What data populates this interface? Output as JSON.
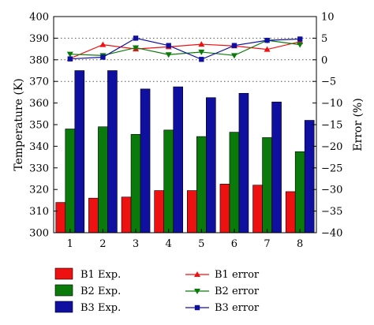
{
  "chart_data": {
    "type": "bar",
    "categories": [
      "1",
      "2",
      "3",
      "4",
      "5",
      "6",
      "7",
      "8"
    ],
    "ylabel": "Temperature (K)",
    "ylim": [
      300,
      400
    ],
    "yticks": [
      "300",
      "310",
      "320",
      "330",
      "340",
      "350",
      "360",
      "370",
      "380",
      "390",
      "400"
    ],
    "y2label": "Error (%)",
    "y2lim": [
      -40,
      10
    ],
    "y2ticks": [
      "−40",
      "−35",
      "−30",
      "−25",
      "−20",
      "−15",
      "−10",
      "−5",
      "0",
      "5",
      "10"
    ],
    "grid": "dotted horizontal at 370, 380 and 390 K",
    "series": [
      {
        "name": "B1 Exp.",
        "color": "#ee1111",
        "values": [
          314,
          316,
          316.5,
          319.5,
          319.5,
          322.5,
          322,
          319
        ]
      },
      {
        "name": "B2 Exp.",
        "color": "#0a7a0a",
        "values": [
          348,
          349,
          345.5,
          347.5,
          344.5,
          346.5,
          344,
          337.5
        ]
      },
      {
        "name": "B3 Exp.",
        "color": "#1010a0",
        "values": [
          375,
          375,
          366.5,
          367.5,
          362.5,
          364.5,
          360.5,
          352
        ]
      }
    ],
    "error_series": [
      {
        "name": "B1 error",
        "color": "#ee1111",
        "marker": "triangle-up",
        "values": [
          0.3,
          3.5,
          2.5,
          3.0,
          3.6,
          3.2,
          2.4,
          4.2
        ]
      },
      {
        "name": "B2 error",
        "color": "#0a7a0a",
        "marker": "triangle-down",
        "values": [
          1.3,
          1.0,
          2.8,
          1.2,
          1.8,
          1.0,
          4.5,
          3.5
        ]
      },
      {
        "name": "B3 error",
        "color": "#1010a0",
        "marker": "square",
        "values": [
          0.2,
          0.6,
          5.0,
          3.3,
          0.1,
          3.3,
          4.5,
          4.8
        ]
      }
    ]
  }
}
